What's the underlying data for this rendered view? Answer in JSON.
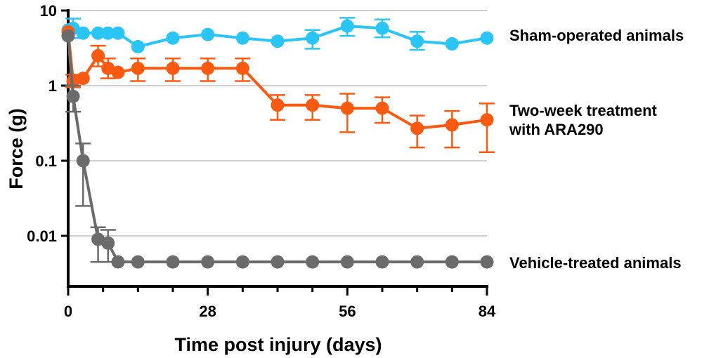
{
  "chart_data": {
    "type": "line",
    "title": "",
    "xlabel": "Time post injury (days)",
    "ylabel": "Force (g)",
    "xlim": [
      0,
      84
    ],
    "ylim": [
      0.002,
      10
    ],
    "y_scale": "log",
    "x_ticks": [
      0,
      28,
      56,
      84
    ],
    "x_tick_labels": [
      "0",
      "28",
      "56",
      "84"
    ],
    "y_ticks": [
      10,
      1,
      0.1,
      0.01
    ],
    "y_tick_labels": [
      "10",
      "1",
      "0.1",
      "0.01"
    ],
    "grid": "horizontal",
    "legend": "right (labels at line ends)",
    "series": [
      {
        "name": "Sham-operated animals",
        "color": "#29c5f6",
        "x": [
          0,
          1,
          3,
          6,
          8,
          10,
          14,
          21,
          28,
          35,
          42,
          49,
          56,
          63,
          70,
          77,
          84
        ],
        "y": [
          5.5,
          5.8,
          5.0,
          5.0,
          5.0,
          5.0,
          3.3,
          4.3,
          4.8,
          4.3,
          3.9,
          4.3,
          6.2,
          5.8,
          3.9,
          3.6,
          4.3
        ],
        "err_upper": [
          null,
          7.8,
          null,
          null,
          null,
          null,
          null,
          null,
          null,
          null,
          null,
          5.5,
          8.0,
          7.6,
          5.2,
          null,
          null
        ],
        "err_lower": [
          null,
          4.3,
          null,
          null,
          null,
          null,
          null,
          null,
          null,
          null,
          null,
          3.1,
          4.6,
          4.4,
          3.0,
          null,
          null
        ]
      },
      {
        "name": "Two-week treatment with ARA290",
        "color": "#fa5a0f",
        "x": [
          0,
          1,
          3,
          6,
          8,
          10,
          14,
          21,
          28,
          35,
          42,
          49,
          56,
          63,
          70,
          77,
          84
        ],
        "y": [
          5.2,
          1.15,
          1.25,
          2.5,
          1.7,
          1.5,
          1.7,
          1.7,
          1.7,
          1.7,
          0.55,
          0.55,
          0.5,
          0.5,
          0.27,
          0.3,
          0.35
        ],
        "err_upper": [
          null,
          1.4,
          null,
          3.4,
          2.3,
          null,
          2.3,
          2.3,
          2.3,
          2.3,
          0.75,
          0.75,
          0.78,
          0.7,
          0.4,
          0.46,
          0.58
        ],
        "err_lower": [
          null,
          0.95,
          null,
          1.8,
          1.25,
          null,
          1.15,
          1.15,
          1.15,
          1.15,
          0.35,
          0.35,
          0.24,
          0.32,
          0.15,
          0.15,
          0.13
        ]
      },
      {
        "name": "Vehicle-treated animals",
        "color": "#6b6b6b",
        "x": [
          0,
          1,
          3,
          6,
          8,
          10,
          14,
          21,
          28,
          35,
          42,
          49,
          56,
          63,
          70,
          77,
          84
        ],
        "y": [
          4.6,
          0.72,
          0.1,
          0.009,
          0.008,
          0.0045,
          0.0045,
          0.0045,
          0.0045,
          0.0045,
          0.0045,
          0.0045,
          0.0045,
          0.0045,
          0.0045,
          0.0045,
          0.0045
        ],
        "err_upper": [
          null,
          1.0,
          0.17,
          0.013,
          0.012,
          null,
          null,
          null,
          null,
          null,
          null,
          null,
          null,
          null,
          null,
          null,
          null
        ],
        "err_lower": [
          null,
          0.45,
          0.025,
          0.0045,
          0.0045,
          null,
          null,
          null,
          null,
          null,
          null,
          null,
          null,
          null,
          null,
          null,
          null
        ]
      }
    ],
    "series_labels": [
      {
        "lines": [
          "Sham-operated animals"
        ]
      },
      {
        "lines": [
          "Two-week treatment",
          "with ARA290"
        ]
      },
      {
        "lines": [
          "Vehicle-treated animals"
        ]
      }
    ]
  }
}
